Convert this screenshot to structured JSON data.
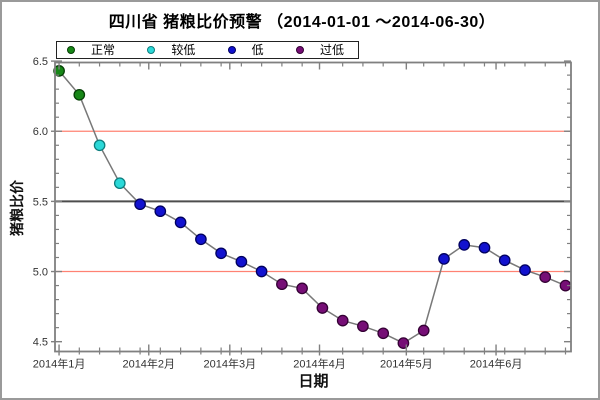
{
  "chart_data": {
    "type": "line",
    "title": "四川省 猪粮比价预警 （2014-01-01 ～2014-06-30）",
    "xlabel": "日期",
    "ylabel": "猪粮比价",
    "grid": false,
    "ylim": [
      4.43,
      6.49
    ],
    "y_major_ticks": [
      4.5,
      5.0,
      5.5,
      6.0,
      6.5
    ],
    "y_tick_labels": [
      "4.5",
      "5.0",
      "5.5",
      "6.0",
      "6.5"
    ],
    "y_minor_step": 0.1,
    "xlim_days": [
      -1.4,
      176.9
    ],
    "x_tick_days": [
      0,
      31,
      59,
      90,
      120,
      151
    ],
    "x_tick_labels": [
      "2014年1月",
      "2014年2月",
      "2014年3月",
      "2014年4月",
      "2014年5月",
      "2014年6月"
    ],
    "x_minor_step_days": 7,
    "line_color": "#787878",
    "axis_color": "#808080",
    "tick_label_color": "#333333",
    "reference_lines": [
      {
        "y": 6.0,
        "color": "#ff8273",
        "width": 1.3
      },
      {
        "y": 5.5,
        "color": "#4d4d4d",
        "width": 2.0
      },
      {
        "y": 5.0,
        "color": "#ff8273",
        "width": 1.3
      }
    ],
    "legend": {
      "position": "top-left",
      "items": [
        {
          "label": "正常",
          "color": "#178717",
          "edge": "#063f06"
        },
        {
          "label": "较低",
          "color": "#2bd8d8",
          "edge": "#0d7e7e"
        },
        {
          "label": "低",
          "color": "#1212cf",
          "edge": "#00005e"
        },
        {
          "label": "过低",
          "color": "#760e76",
          "edge": "#340134"
        }
      ]
    },
    "points": [
      {
        "day": 0,
        "value": 6.43,
        "level": "正常"
      },
      {
        "day": 7,
        "value": 6.26,
        "level": "正常"
      },
      {
        "day": 14,
        "value": 5.9,
        "level": "较低"
      },
      {
        "day": 21,
        "value": 5.63,
        "level": "较低"
      },
      {
        "day": 28,
        "value": 5.48,
        "level": "低"
      },
      {
        "day": 35,
        "value": 5.43,
        "level": "低"
      },
      {
        "day": 42,
        "value": 5.35,
        "level": "低"
      },
      {
        "day": 49,
        "value": 5.23,
        "level": "低"
      },
      {
        "day": 56,
        "value": 5.13,
        "level": "低"
      },
      {
        "day": 63,
        "value": 5.07,
        "level": "低"
      },
      {
        "day": 70,
        "value": 5.0,
        "level": "低"
      },
      {
        "day": 77,
        "value": 4.91,
        "level": "过低"
      },
      {
        "day": 84,
        "value": 4.88,
        "level": "过低"
      },
      {
        "day": 91,
        "value": 4.74,
        "level": "过低"
      },
      {
        "day": 98,
        "value": 4.65,
        "level": "过低"
      },
      {
        "day": 105,
        "value": 4.61,
        "level": "过低"
      },
      {
        "day": 112,
        "value": 4.56,
        "level": "过低"
      },
      {
        "day": 119,
        "value": 4.49,
        "level": "过低"
      },
      {
        "day": 126,
        "value": 4.58,
        "level": "过低"
      },
      {
        "day": 133,
        "value": 5.09,
        "level": "低"
      },
      {
        "day": 140,
        "value": 5.19,
        "level": "低"
      },
      {
        "day": 147,
        "value": 5.17,
        "level": "低"
      },
      {
        "day": 154,
        "value": 5.08,
        "level": "低"
      },
      {
        "day": 161,
        "value": 5.01,
        "level": "低"
      },
      {
        "day": 168,
        "value": 4.96,
        "level": "过低"
      },
      {
        "day": 175,
        "value": 4.9,
        "level": "过低"
      }
    ]
  }
}
